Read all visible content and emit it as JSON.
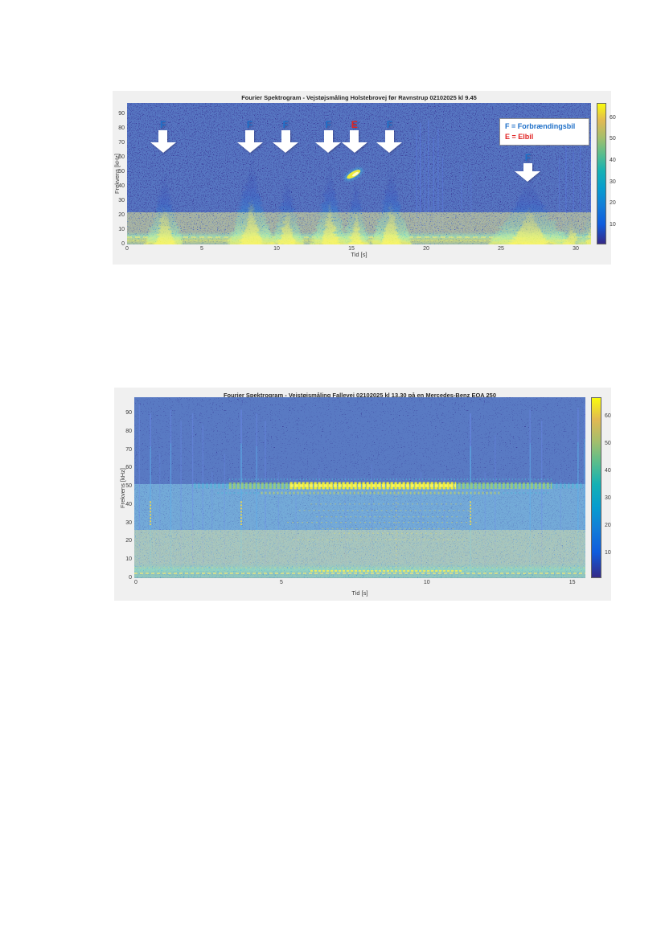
{
  "page": {
    "background": "#ffffff"
  },
  "colors": {
    "panel": "#f0f0f0",
    "axis_text": "#3a3a3a",
    "spectrogram_background": "#332a8c",
    "annotation_blue": "#1e6fc8",
    "annotation_red": "#e02424",
    "arrow_fill": "#ffffff",
    "colormap_parula": [
      "#352a87",
      "#0f5cdd",
      "#127dd8",
      "#079ccf",
      "#15b1b4",
      "#59bd8c",
      "#a5be6b",
      "#e1b952",
      "#f9fb0e"
    ]
  },
  "chart_data": [
    {
      "type": "heatmap",
      "subtype": "spectrogram",
      "title": "Fourier Spektrogram - Vejstøjsmåling Holstebrovej før Ravnstrup 02102025 kl 9.45",
      "xlabel": "Tid [s]",
      "ylabel": "Frekvens [kHz]",
      "xlim": [
        0,
        31
      ],
      "ylim": [
        0,
        97
      ],
      "x_ticks": [
        0,
        5,
        10,
        15,
        20,
        25,
        30
      ],
      "y_ticks": [
        0,
        10,
        20,
        30,
        40,
        50,
        60,
        70,
        80,
        90
      ],
      "colorbar_ticks": [
        10,
        20,
        30,
        40,
        50,
        60
      ],
      "colorbar_range": [
        1,
        67
      ],
      "legend": [
        {
          "symbol": "F",
          "label": "F = Forbrændingsbil",
          "color": "#1e6fc8"
        },
        {
          "symbol": "E",
          "label": "E = Elbil",
          "color": "#e02424"
        }
      ],
      "annotation_colors": {
        "F": "#1e6fc8",
        "E": "#e02424"
      },
      "events": [
        {
          "t": 2.4,
          "label": "F",
          "peak_khz": 52,
          "halfwidth_s": 1.35,
          "arrow_row": 1
        },
        {
          "t": 8.2,
          "label": "F",
          "peak_khz": 62,
          "halfwidth_s": 1.6,
          "arrow_row": 1
        },
        {
          "t": 10.6,
          "label": "F",
          "peak_khz": 50,
          "halfwidth_s": 1.15,
          "arrow_row": 1
        },
        {
          "t": 13.45,
          "label": "F",
          "peak_khz": 58,
          "halfwidth_s": 1.25,
          "arrow_row": 1
        },
        {
          "t": 15.2,
          "label": "E",
          "peak_khz": 50,
          "halfwidth_s": 0.9,
          "arrow_row": 1,
          "chirp_blob": {
            "t": 15.15,
            "khz": 48.5
          }
        },
        {
          "t": 17.55,
          "label": "F",
          "peak_khz": 57,
          "halfwidth_s": 1.4,
          "arrow_row": 1
        },
        {
          "t": 26.8,
          "label": "F",
          "peak_khz": 49,
          "halfwidth_s": 2.9,
          "arrow_row": 2
        }
      ],
      "minor_plumes": [
        {
          "t": 29.6,
          "peak_khz": 30,
          "halfwidth_s": 1.1
        },
        {
          "t": 31.0,
          "peak_khz": 38,
          "halfwidth_s": 0.9
        }
      ],
      "vertical_lines": [
        {
          "t": 19.35,
          "f_top": 78,
          "opacity": 0.5
        },
        {
          "t": 19.6,
          "f_top": 84,
          "opacity": 0.6
        },
        {
          "t": 19.9,
          "f_top": 70,
          "opacity": 0.45
        },
        {
          "t": 20.15,
          "f_top": 86,
          "opacity": 0.6
        },
        {
          "t": 20.5,
          "f_top": 74,
          "opacity": 0.5
        },
        {
          "t": 20.8,
          "f_top": 80,
          "opacity": 0.55
        },
        {
          "t": 21.1,
          "f_top": 60,
          "opacity": 0.4
        },
        {
          "t": 22.35,
          "f_top": 55,
          "opacity": 0.35
        },
        {
          "t": 23.0,
          "f_top": 50,
          "opacity": 0.3
        },
        {
          "t": 28.9,
          "f_top": 60,
          "opacity": 0.4
        },
        {
          "t": 29.35,
          "f_top": 72,
          "opacity": 0.5
        },
        {
          "t": 29.85,
          "f_top": 64,
          "opacity": 0.45
        },
        {
          "t": 30.3,
          "f_top": 70,
          "opacity": 0.5
        },
        {
          "t": 30.75,
          "f_top": 58,
          "opacity": 0.4
        },
        {
          "t": 31.0,
          "f_top": 80,
          "opacity": 0.55
        }
      ]
    },
    {
      "type": "heatmap",
      "subtype": "spectrogram",
      "title": "Fourier Spektrogram - Vejstøjsmåling Fallevej 02102025 kl 13.30 på en Mercedes-Benz EQA 250",
      "xlabel": "Tid [s]",
      "ylabel": "Frekvens [kHz]",
      "xlim": [
        0,
        15.5
      ],
      "ylim": [
        0,
        98
      ],
      "x_ticks": [
        0,
        5,
        10,
        15
      ],
      "y_ticks": [
        0,
        10,
        20,
        30,
        40,
        50,
        60,
        70,
        80,
        90
      ],
      "colorbar_ticks": [
        10,
        20,
        30,
        40,
        50,
        60
      ],
      "colorbar_range": [
        1,
        67
      ],
      "main_band": {
        "khz": 50.5,
        "khz_halfwidth": 2.5,
        "outer": [
          2.0,
          15.35
        ],
        "mid": [
          3.2,
          14.3
        ],
        "core": [
          5.3,
          11.0
        ],
        "upper_edge_khz": 54,
        "secondary_khz": 46.5,
        "secondary_range": [
          4.3,
          12.5
        ]
      },
      "harmonics": [
        {
          "khz": 40.5,
          "t1": 6.0,
          "t2": 11.3
        },
        {
          "khz": 37.0,
          "t1": 5.6,
          "t2": 11.6
        },
        {
          "khz": 33.5,
          "t1": 6.2,
          "t2": 11.2
        },
        {
          "khz": 30.5,
          "t1": 5.2,
          "t2": 11.8
        },
        {
          "khz": 27.0,
          "t1": 6.4,
          "t2": 11.0
        },
        {
          "khz": 24.5,
          "t1": 6.8,
          "t2": 10.6
        },
        {
          "khz": 21.0,
          "t1": 5.4,
          "t2": 11.4
        }
      ],
      "streaks": [
        {
          "t": 0.12,
          "f_top": 95,
          "intensity": 0.5
        },
        {
          "t": 0.5,
          "f_top": 90,
          "intensity": 0.7,
          "yellow_dashes": true
        },
        {
          "t": 0.82,
          "f_top": 68,
          "intensity": 0.35
        },
        {
          "t": 1.2,
          "f_top": 92,
          "intensity": 0.6
        },
        {
          "t": 1.55,
          "f_top": 86,
          "intensity": 0.5
        },
        {
          "t": 1.95,
          "f_top": 90,
          "intensity": 0.55
        },
        {
          "t": 2.3,
          "f_top": 84,
          "intensity": 0.5
        },
        {
          "t": 2.62,
          "f_top": 58,
          "intensity": 0.35
        },
        {
          "t": 3.05,
          "f_top": 68,
          "intensity": 0.4
        },
        {
          "t": 3.62,
          "f_top": 92,
          "intensity": 0.85,
          "yellow_dashes": true
        },
        {
          "t": 4.15,
          "f_top": 90,
          "intensity": 0.6
        },
        {
          "t": 4.45,
          "f_top": 86,
          "intensity": 0.55
        },
        {
          "t": 4.9,
          "f_top": 58,
          "intensity": 0.4
        },
        {
          "t": 5.5,
          "f_top": 54,
          "intensity": 0.35
        },
        {
          "t": 6.3,
          "f_top": 60,
          "intensity": 0.35
        },
        {
          "t": 7.2,
          "f_top": 56,
          "intensity": 0.3
        },
        {
          "t": 8.1,
          "f_top": 62,
          "intensity": 0.35
        },
        {
          "t": 8.95,
          "f_top": 55,
          "intensity": 0.4
        },
        {
          "t": 9.8,
          "f_top": 58,
          "intensity": 0.3
        },
        {
          "t": 10.6,
          "f_top": 55,
          "intensity": 0.35
        },
        {
          "t": 11.5,
          "f_top": 90,
          "intensity": 0.9,
          "yellow_dashes": true
        },
        {
          "t": 12.0,
          "f_top": 58,
          "intensity": 0.4
        },
        {
          "t": 12.35,
          "f_top": 78,
          "intensity": 0.45
        },
        {
          "t": 13.55,
          "f_top": 92,
          "intensity": 0.6
        },
        {
          "t": 13.95,
          "f_top": 86,
          "intensity": 0.55
        },
        {
          "t": 14.6,
          "f_top": 54,
          "intensity": 0.35
        },
        {
          "t": 15.2,
          "f_top": 93,
          "intensity": 0.75
        },
        {
          "t": 15.42,
          "f_top": 95,
          "intensity": 0.6
        }
      ]
    }
  ]
}
